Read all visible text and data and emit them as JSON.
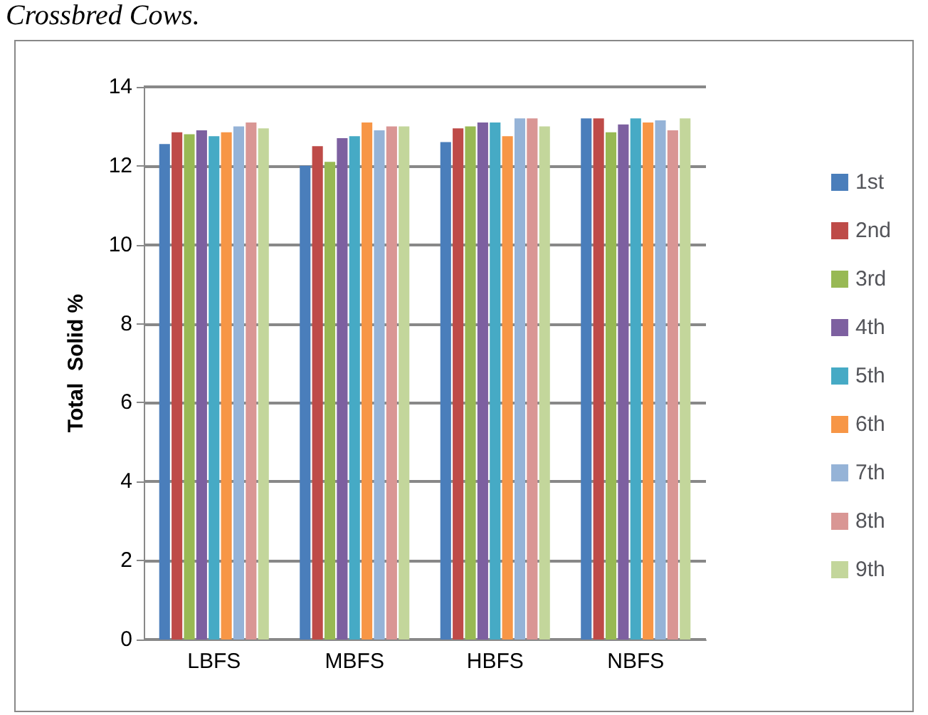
{
  "chart_data": {
    "type": "bar",
    "title": "Crossbred Cows.",
    "ylabel": "Total  Solid %",
    "categories": [
      "LBFS",
      "MBFS",
      "HBFS",
      "NBFS"
    ],
    "series": [
      {
        "name": "1st",
        "color": "#4a7ebb",
        "values": [
          12.55,
          12.0,
          12.6,
          13.2
        ]
      },
      {
        "name": "2nd",
        "color": "#be4b48",
        "values": [
          12.85,
          12.5,
          12.95,
          13.2
        ]
      },
      {
        "name": "3rd",
        "color": "#98b954",
        "values": [
          12.8,
          12.1,
          13.0,
          12.85
        ]
      },
      {
        "name": "4th",
        "color": "#7d60a0",
        "values": [
          12.9,
          12.7,
          13.1,
          13.05
        ]
      },
      {
        "name": "5th",
        "color": "#46aac5",
        "values": [
          12.75,
          12.75,
          13.1,
          13.2
        ]
      },
      {
        "name": "6th",
        "color": "#f79646",
        "values": [
          12.85,
          13.1,
          12.75,
          13.1
        ]
      },
      {
        "name": "7th",
        "color": "#95b3d7",
        "values": [
          13.0,
          12.9,
          13.2,
          13.15
        ]
      },
      {
        "name": "8th",
        "color": "#d99694",
        "values": [
          13.1,
          13.0,
          13.2,
          12.9
        ]
      },
      {
        "name": "9th",
        "color": "#c3d69b",
        "values": [
          12.95,
          13.0,
          13.0,
          13.2
        ]
      }
    ],
    "ylim": [
      0,
      14
    ],
    "yticks": [
      0,
      2,
      4,
      6,
      8,
      10,
      12,
      14
    ],
    "grid": "y",
    "legend": "right"
  }
}
